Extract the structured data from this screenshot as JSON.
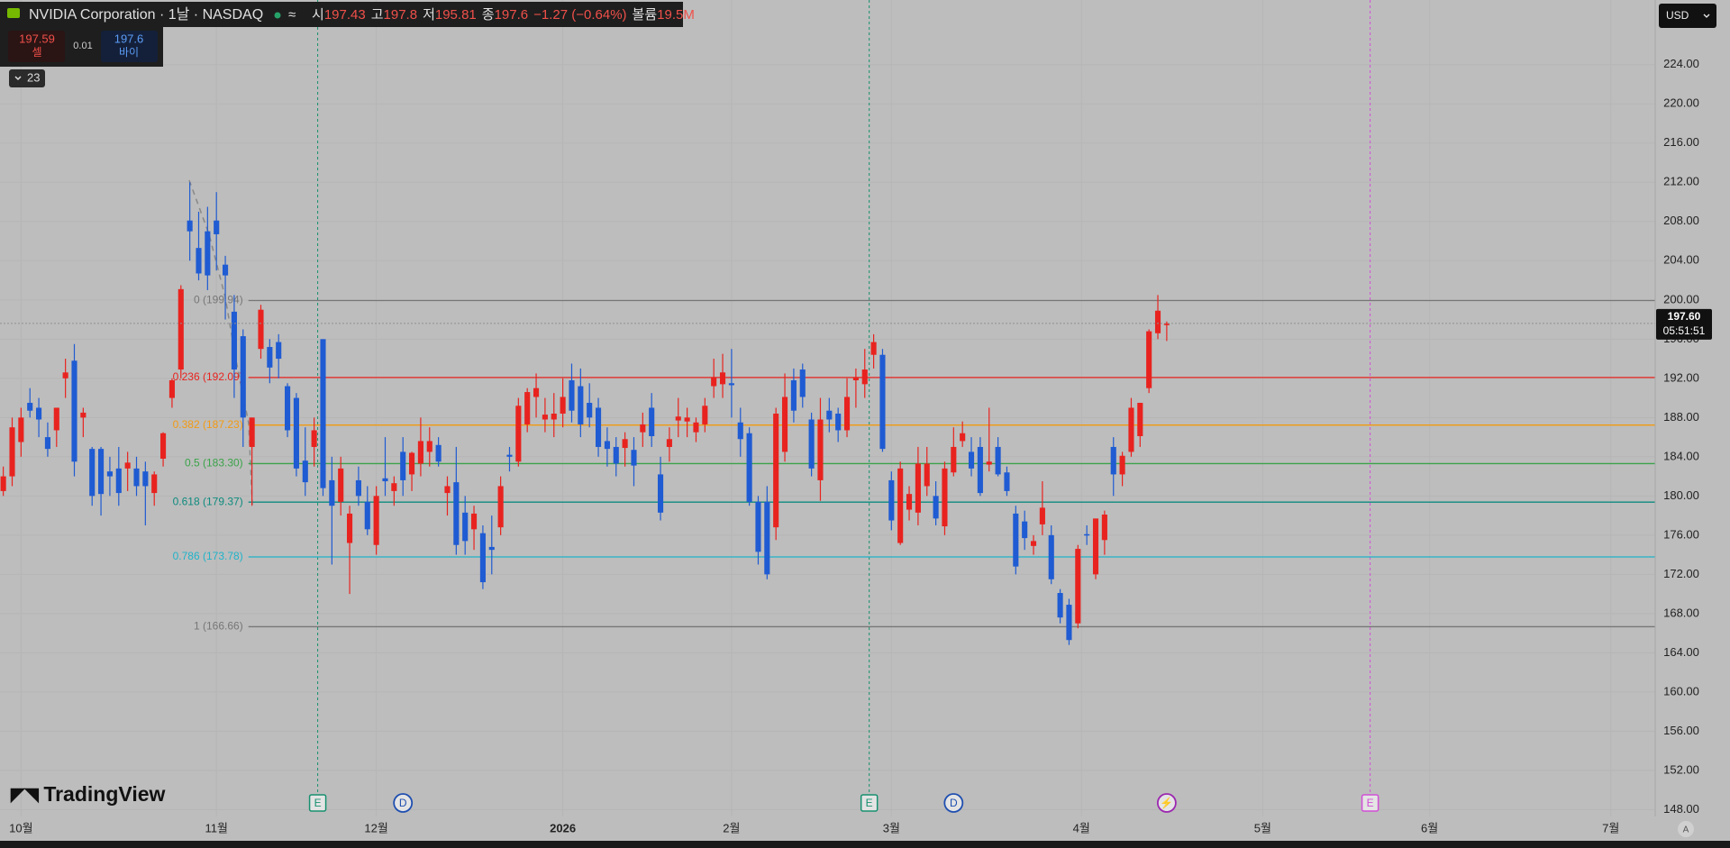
{
  "chart_data": {
    "type": "candlestick",
    "header": {
      "title": "NVIDIA Corporation · 1날 · NASDAQ",
      "open_label": "시",
      "open": 197.43,
      "high_label": "고",
      "high": 197.8,
      "low_label": "저",
      "low": 195.81,
      "close_label": "종",
      "close": 197.6,
      "change": "−1.27 (−0.64%)",
      "volume_label": "볼륨",
      "volume": "19.5M"
    },
    "quote": {
      "sell": 197.59,
      "sell_label": "셀",
      "spread": 0.01,
      "buy": 197.6,
      "buy_label": "바이"
    },
    "indicators": "23",
    "currency": "USD",
    "brand": "TradingView",
    "price_tag": {
      "value": 197.6,
      "label": "197.60",
      "timer": "05:51:51"
    },
    "up_color": "#e8231f",
    "down_color": "#1f5bd2",
    "xlim": [
      -0.37,
      186
    ],
    "ylim": [
      147.3,
      230.6
    ],
    "yticks": [
      {
        "value": 148,
        "label": "148.00"
      },
      {
        "value": 152,
        "label": "152.00"
      },
      {
        "value": 156,
        "label": "156.00"
      },
      {
        "value": 160,
        "label": "160.00"
      },
      {
        "value": 164,
        "label": "164.00"
      },
      {
        "value": 168,
        "label": "168.00"
      },
      {
        "value": 172,
        "label": "172.00"
      },
      {
        "value": 176,
        "label": "176.00"
      },
      {
        "value": 180,
        "label": "180.00"
      },
      {
        "value": 184,
        "label": "184.00"
      },
      {
        "value": 188,
        "label": "188.00"
      },
      {
        "value": 192,
        "label": "192.00"
      },
      {
        "value": 196,
        "label": "196.00"
      },
      {
        "value": 200,
        "label": "200.00"
      },
      {
        "value": 204,
        "label": "204.00"
      },
      {
        "value": 208,
        "label": "208.00"
      },
      {
        "value": 212,
        "label": "212.00"
      },
      {
        "value": 216,
        "label": "216.00"
      },
      {
        "value": 220,
        "label": "220.00"
      },
      {
        "value": 224,
        "label": "224.00"
      }
    ],
    "xticks": [
      {
        "value": 2,
        "label": "10월"
      },
      {
        "value": 24,
        "label": "11월"
      },
      {
        "value": 42,
        "label": "12월"
      },
      {
        "value": 63,
        "label": "2026"
      },
      {
        "value": 82,
        "label": "2월"
      },
      {
        "value": 100,
        "label": "3월"
      },
      {
        "value": 121.4,
        "label": "4월"
      },
      {
        "value": 141.8,
        "label": "5월"
      },
      {
        "value": 160.6,
        "label": "6월"
      },
      {
        "value": 181,
        "label": "7월"
      }
    ],
    "fib_start": 27.6,
    "fib_levels": [
      {
        "label": "0 (199.94)",
        "value": 199.94,
        "color": "#777777"
      },
      {
        "label": "0.236 (192.09)",
        "value": 192.09,
        "color": "#e8231f"
      },
      {
        "label": "0.382 (187.23)",
        "value": 187.23,
        "color": "#f39a12"
      },
      {
        "label": "0.5 (183.30)",
        "value": 183.3,
        "color": "#3aa34a"
      },
      {
        "label": "0.618 (179.37)",
        "value": 179.37,
        "color": "#0d8b7e"
      },
      {
        "label": "0.786 (173.78)",
        "value": 173.78,
        "color": "#1fb3c9"
      },
      {
        "label": "1 (166.66)",
        "value": 166.66,
        "color": "#777777"
      }
    ],
    "events": [
      {
        "label": "E",
        "x": 35.4,
        "color": "#16906f",
        "line": true
      },
      {
        "label": "D",
        "x": 45,
        "color": "#1f4fb0"
      },
      {
        "label": "E",
        "x": 97.5,
        "color": "#16906f",
        "line": true
      },
      {
        "label": "D",
        "x": 107,
        "color": "#1f4fb0"
      },
      {
        "label": "⚡",
        "x": 131,
        "color": "#9c27b0"
      },
      {
        "label": "E",
        "x": 153.9,
        "color": "#d24fd6",
        "line": true
      }
    ],
    "candles": [
      [
        180.5,
        183,
        180,
        182
      ],
      [
        182,
        188,
        181,
        187
      ],
      [
        185.5,
        189,
        184,
        188
      ],
      [
        189.5,
        191,
        188,
        188.7
      ],
      [
        189,
        190,
        186,
        187.8
      ],
      [
        186,
        187.5,
        184,
        184.8
      ],
      [
        186.7,
        189,
        185,
        189
      ],
      [
        192,
        194,
        190,
        192.6
      ],
      [
        193.8,
        195.5,
        182,
        183.5
      ],
      [
        188,
        189,
        186,
        188.5
      ],
      [
        184.8,
        185,
        179,
        180
      ],
      [
        184.8,
        185,
        178,
        180.2
      ],
      [
        182.5,
        184,
        180,
        182
      ],
      [
        182.8,
        185,
        179,
        180.3
      ],
      [
        182.8,
        184.5,
        180.5,
        183.4
      ],
      [
        182.8,
        184,
        180,
        181
      ],
      [
        182.5,
        183.5,
        177,
        181
      ],
      [
        180.3,
        182.5,
        179,
        182.2
      ],
      [
        183.8,
        186.5,
        183,
        186.4
      ],
      [
        190,
        192,
        189,
        191.8
      ],
      [
        192.9,
        201.5,
        192,
        201.1
      ],
      [
        208.1,
        212,
        204,
        207
      ],
      [
        205.3,
        209,
        202,
        202.7
      ],
      [
        207,
        209.5,
        201,
        202.5
      ],
      [
        208.1,
        211,
        203,
        206.7
      ],
      [
        203.6,
        204.5,
        198,
        202.5
      ],
      [
        198.8,
        200.5,
        190,
        192.9
      ],
      [
        196.3,
        197,
        185,
        188
      ],
      [
        185,
        188,
        179,
        188
      ],
      [
        195,
        199.5,
        194,
        199
      ],
      [
        195.2,
        196,
        191.5,
        193.1
      ],
      [
        195.7,
        196.5,
        192,
        194
      ],
      [
        191.2,
        191.5,
        186,
        186.7
      ],
      [
        190,
        190.5,
        182,
        182.8
      ],
      [
        183.6,
        187,
        180,
        181.4
      ],
      [
        185,
        188,
        183,
        186.7
      ],
      [
        196,
        196,
        180,
        180.8
      ],
      [
        181.6,
        184,
        173,
        179
      ],
      [
        179.4,
        184,
        178,
        182.8
      ],
      [
        175.2,
        179,
        170,
        178.2
      ],
      [
        181.6,
        183,
        179,
        180
      ],
      [
        179.4,
        181,
        176,
        176.6
      ],
      [
        175,
        181,
        174,
        180
      ],
      [
        181.8,
        186,
        180,
        181.5
      ],
      [
        180.5,
        182,
        179,
        181.3
      ],
      [
        184.5,
        186,
        180,
        181.6
      ],
      [
        182.2,
        184.5,
        180.5,
        184.4
      ],
      [
        183.3,
        188,
        182,
        185.6
      ],
      [
        184.5,
        187,
        183,
        185.6
      ],
      [
        185.2,
        186,
        183,
        183.5
      ],
      [
        180.3,
        182,
        178,
        181
      ],
      [
        181.4,
        185,
        174,
        175
      ],
      [
        178.3,
        180,
        174,
        175.4
      ],
      [
        176.6,
        179,
        174.5,
        178.2
      ],
      [
        176.2,
        177,
        170.5,
        171.2
      ],
      [
        174.8,
        178,
        172,
        174.5
      ],
      [
        176.8,
        182,
        176,
        181
      ],
      [
        184.2,
        185,
        182.5,
        184
      ],
      [
        183.5,
        190,
        183,
        189.2
      ],
      [
        187.3,
        191,
        186.5,
        190.6
      ],
      [
        190.1,
        192.5,
        188,
        191
      ],
      [
        187.8,
        190,
        186.5,
        188.3
      ],
      [
        187.8,
        190.5,
        186,
        188.4
      ],
      [
        188.4,
        192,
        187,
        190.1
      ],
      [
        191.8,
        193.5,
        187.5,
        188.7
      ],
      [
        191.2,
        193,
        186,
        187.3
      ],
      [
        189.5,
        191.5,
        187,
        188
      ],
      [
        189,
        190,
        184,
        185
      ],
      [
        185.6,
        187,
        183,
        184.8
      ],
      [
        185,
        186,
        182,
        183.3
      ],
      [
        184.9,
        186.5,
        183,
        185.8
      ],
      [
        184.7,
        186,
        181,
        183.1
      ],
      [
        186.5,
        188.5,
        185,
        187.3
      ],
      [
        189,
        190.5,
        185,
        186.1
      ],
      [
        182.2,
        184,
        177.5,
        178.3
      ],
      [
        185,
        187,
        183.5,
        185.8
      ],
      [
        187.7,
        190,
        186,
        188.1
      ],
      [
        187.6,
        189,
        186,
        188
      ],
      [
        186.5,
        188,
        185.5,
        187.5
      ],
      [
        187.3,
        190,
        186.5,
        189.2
      ],
      [
        191.2,
        194,
        190,
        192.1
      ],
      [
        191.4,
        194.5,
        190,
        192.6
      ],
      [
        191.5,
        195,
        188,
        191.3
      ],
      [
        187.5,
        189,
        184,
        185.8
      ],
      [
        186.4,
        187,
        179,
        179.4
      ],
      [
        179.4,
        180,
        173,
        174.3
      ],
      [
        179.4,
        181,
        171.5,
        172
      ],
      [
        176.8,
        189,
        175.5,
        188.4
      ],
      [
        184.5,
        192.5,
        183.5,
        190.1
      ],
      [
        191.8,
        193,
        187.5,
        188.7
      ],
      [
        192.9,
        193.5,
        189,
        190.1
      ],
      [
        187.8,
        188.5,
        182,
        182.8
      ],
      [
        181.6,
        190,
        179.5,
        187.8
      ],
      [
        188.7,
        190,
        186.5,
        187.8
      ],
      [
        188.4,
        189,
        185.5,
        186.7
      ],
      [
        186.7,
        192,
        186,
        190.1
      ],
      [
        191.8,
        193,
        189,
        192.1
      ],
      [
        191.4,
        195,
        190,
        192.9
      ],
      [
        194.4,
        196.5,
        193,
        195.7
      ],
      [
        194.4,
        195,
        184.5,
        184.8
      ],
      [
        181.6,
        182.5,
        176.5,
        177.5
      ],
      [
        175.2,
        183.5,
        175,
        182.8
      ],
      [
        178.6,
        181,
        177.5,
        180.2
      ],
      [
        178.3,
        185,
        177,
        183.3
      ],
      [
        181,
        185,
        180,
        183.3
      ],
      [
        180,
        181.5,
        177,
        177.7
      ],
      [
        176.9,
        183.5,
        176,
        182.8
      ],
      [
        182.4,
        187,
        182,
        185
      ],
      [
        185.6,
        187.6,
        185,
        186.4
      ],
      [
        184.5,
        186,
        182,
        182.8
      ],
      [
        185,
        186,
        180,
        180.3
      ],
      [
        183.2,
        189,
        182.5,
        183.5
      ],
      [
        185,
        186,
        182,
        182.2
      ],
      [
        182.4,
        183,
        180,
        180.5
      ],
      [
        178.2,
        179,
        172,
        172.8
      ],
      [
        177.4,
        178.5,
        174.5,
        175.7
      ],
      [
        174.9,
        176,
        174,
        175.4
      ],
      [
        177.1,
        181.5,
        176,
        178.8
      ],
      [
        176,
        177,
        171,
        171.5
      ],
      [
        170.1,
        170.5,
        167,
        167.6
      ],
      [
        168.9,
        169.5,
        164.8,
        165.3
      ],
      [
        167,
        175,
        166.5,
        174.6
      ],
      [
        176.1,
        177,
        175,
        176
      ],
      [
        172,
        177.5,
        171.5,
        177.7
      ],
      [
        175.5,
        178.5,
        174,
        178.1
      ],
      [
        185,
        186,
        180,
        182.2
      ],
      [
        182.2,
        184.5,
        181,
        184.1
      ],
      [
        184.5,
        190,
        184,
        189
      ],
      [
        186.1,
        189.5,
        185,
        189.5
      ],
      [
        191,
        197,
        190.5,
        196.8
      ],
      [
        196.6,
        200.5,
        196,
        198.9
      ],
      [
        197.43,
        197.8,
        195.81,
        197.6
      ]
    ]
  }
}
